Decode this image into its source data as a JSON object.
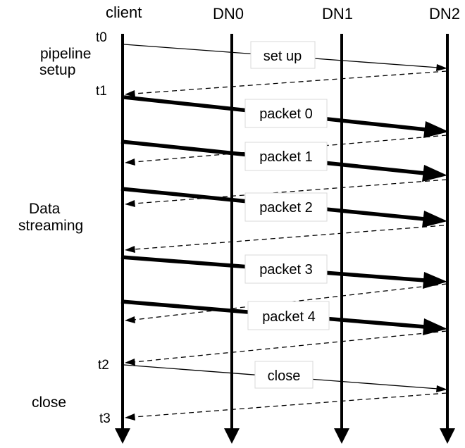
{
  "participants": [
    "client",
    "DN0",
    "DN1",
    "DN2"
  ],
  "times": {
    "t0": "t0",
    "t1": "t1",
    "t2": "t2",
    "t3": "t3"
  },
  "phases": {
    "setup": [
      "pipeline",
      "setup"
    ],
    "streaming": [
      "Data",
      "streaming"
    ],
    "close": [
      "close"
    ]
  },
  "messages": {
    "setup": "set up",
    "packets": [
      "packet 0",
      "packet 1",
      "packet 2",
      "packet 3",
      "packet 4"
    ],
    "close": "close"
  }
}
